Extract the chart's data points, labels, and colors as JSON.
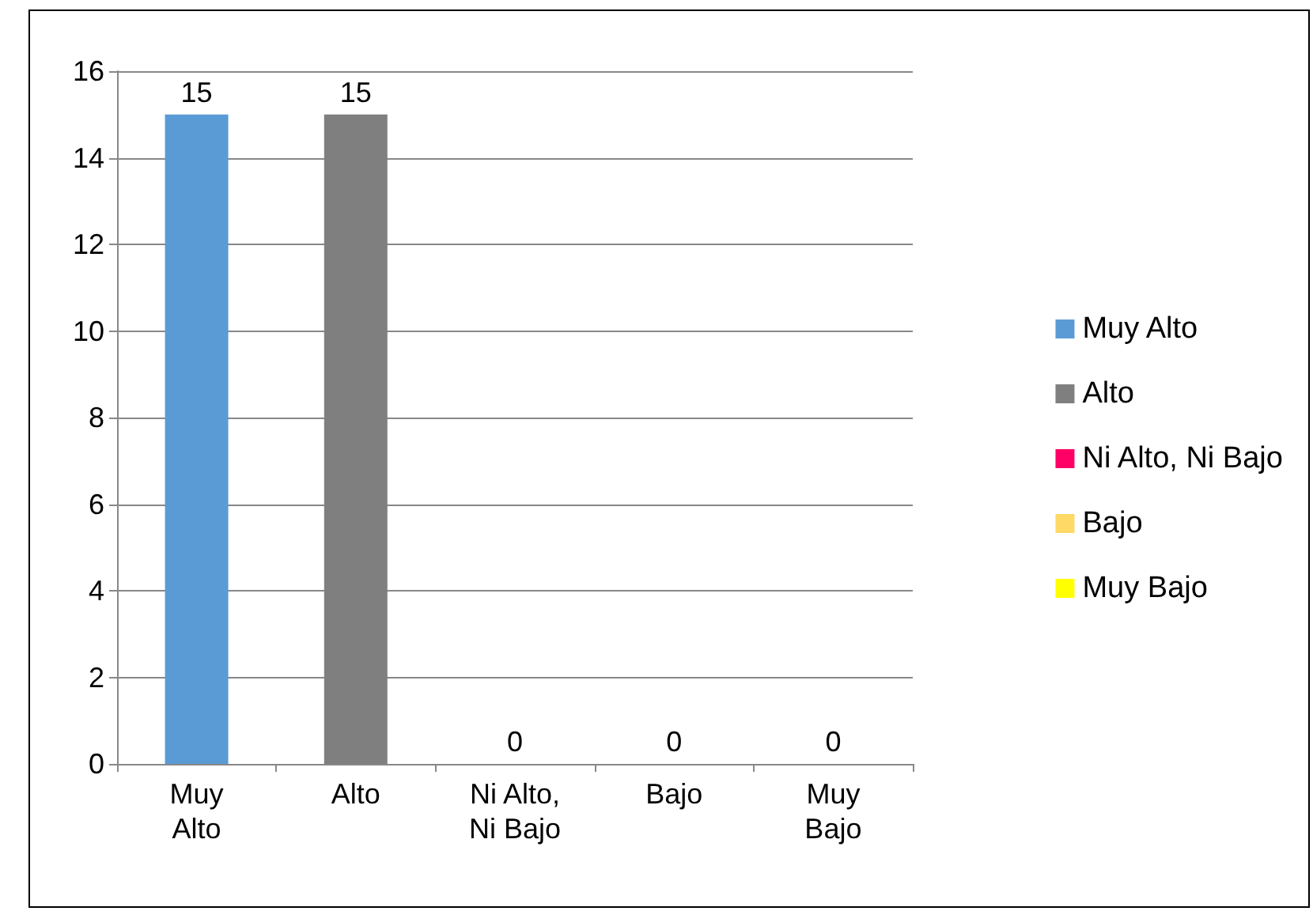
{
  "chart_data": {
    "type": "bar",
    "categories": [
      "Muy\nAlto",
      "Alto",
      "Ni Alto,\nNi Bajo",
      "Bajo",
      "Muy\nBajo"
    ],
    "series": [
      {
        "name": "Muy Alto",
        "color": "#5b9bd5",
        "values": [
          15,
          null,
          null,
          null,
          null
        ]
      },
      {
        "name": "Alto",
        "color": "#7f7f7f",
        "values": [
          null,
          15,
          null,
          null,
          null
        ]
      },
      {
        "name": "Ni Alto, Ni Bajo",
        "color": "#ff0066",
        "values": [
          null,
          null,
          0,
          null,
          null
        ]
      },
      {
        "name": "Bajo",
        "color": "#ffd966",
        "values": [
          null,
          null,
          null,
          0,
          null
        ]
      },
      {
        "name": "Muy Bajo",
        "color": "#ffff00",
        "values": [
          null,
          null,
          null,
          null,
          0
        ]
      }
    ],
    "ylim": [
      0,
      16
    ],
    "yticks": [
      0,
      2,
      4,
      6,
      8,
      10,
      12,
      14,
      16
    ],
    "grid": "y",
    "legend": "right",
    "data_labels": true
  }
}
